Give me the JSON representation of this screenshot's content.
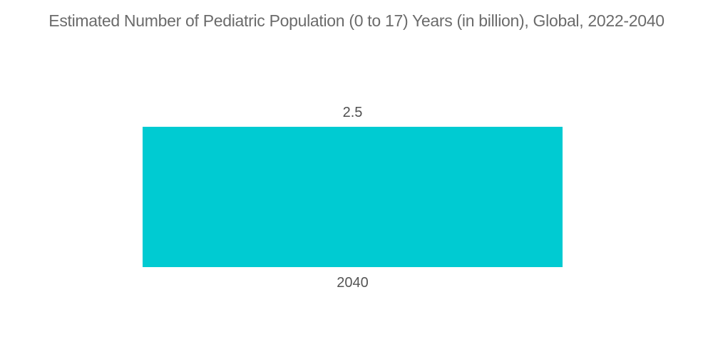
{
  "chart_data": {
    "type": "bar",
    "title": "Estimated Number of Pediatric Population (0 to 17) Years (in billion), Global, 2022-2040",
    "categories": [
      "2040"
    ],
    "values": [
      2.5
    ],
    "xlabel": "",
    "ylabel": "",
    "ylim": [
      0,
      2.5
    ],
    "grid": false,
    "legend_position": "none",
    "bar_color": "#00CBD2",
    "title_color": "#6b6b6b",
    "label_color": "#4f4f4f",
    "background_color": "#ffffff"
  }
}
